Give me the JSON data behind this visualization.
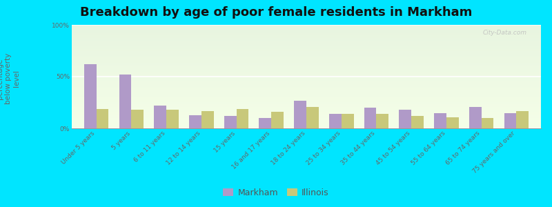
{
  "title": "Breakdown by age of poor female residents in Markham",
  "categories": [
    "Under 5 years",
    "5 years",
    "6 to 11 years",
    "12 to 14 years",
    "15 years",
    "16 and 17 years",
    "18 to 24 years",
    "25 to 34 years",
    "35 to 44 years",
    "45 to 54 years",
    "55 to 64 years",
    "65 to 74 years",
    "75 years and over"
  ],
  "markham_values": [
    62,
    52,
    22,
    13,
    12,
    10,
    27,
    14,
    20,
    18,
    15,
    21,
    15
  ],
  "illinois_values": [
    19,
    18,
    18,
    17,
    19,
    16,
    21,
    14,
    14,
    12,
    11,
    10,
    17
  ],
  "markham_color": "#b09ac8",
  "illinois_color": "#c8c87a",
  "bg_top": "#e8f5e0",
  "bg_bottom": "#f5ffe8",
  "outer_bg": "#00e5ff",
  "ylabel": "percentage\nbelow poverty\nlevel",
  "ylim": [
    0,
    100
  ],
  "yticks": [
    0,
    50,
    100
  ],
  "ytick_labels": [
    "0%",
    "50%",
    "100%"
  ],
  "bar_width": 0.35,
  "title_fontsize": 13,
  "ylabel_fontsize": 7.5,
  "tick_fontsize": 6.5,
  "legend_labels": [
    "Markham",
    "Illinois"
  ],
  "legend_fontsize": 9,
  "watermark": "City-Data.com"
}
